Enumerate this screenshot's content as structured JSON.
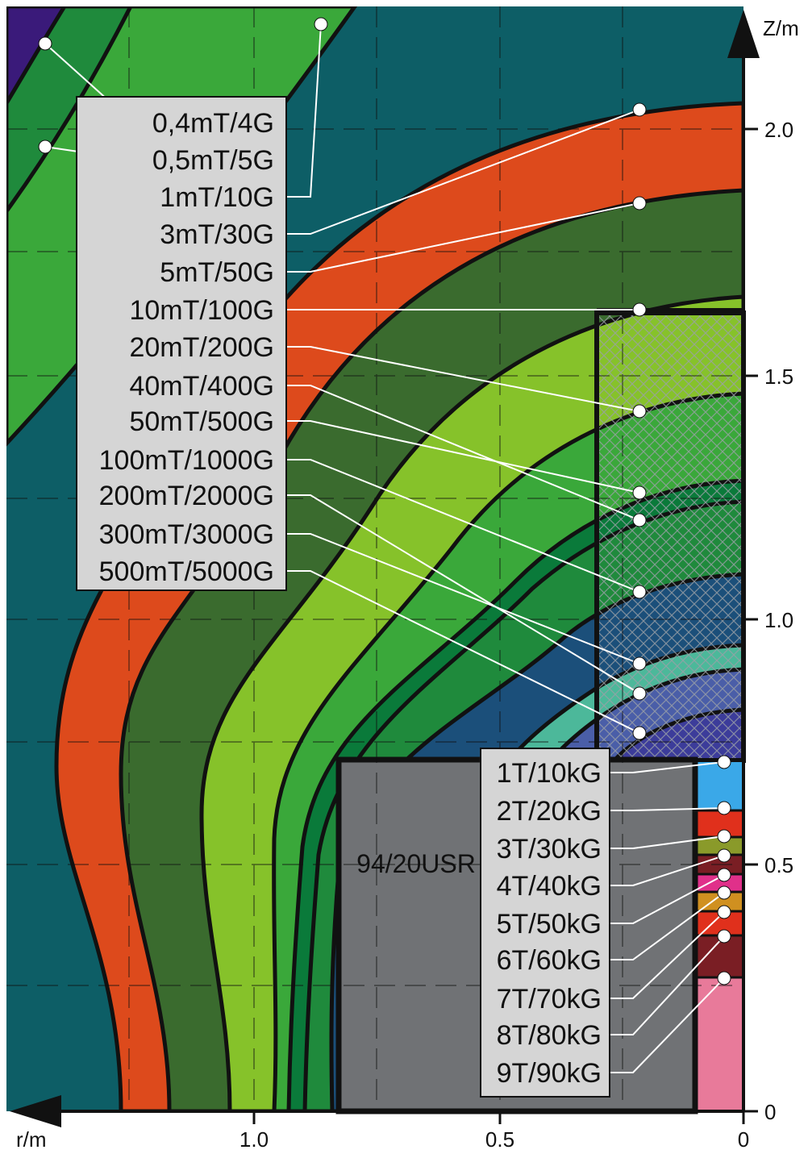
{
  "axes": {
    "r_label": "r/m",
    "z_label": "Z/m",
    "r_ticks": [
      "1.0",
      "0.5",
      "0"
    ],
    "z_ticks": [
      "2.0",
      "1.5",
      "1.0",
      "0.5",
      "0"
    ]
  },
  "magnet_label": "94/20USR",
  "legend_mt": [
    "0,4mT/4G",
    "0,5mT/5G",
    "1mT/10G",
    "3mT/30G",
    "5mT/50G",
    "10mT/100G",
    "20mT/200G",
    "40mT/400G",
    "50mT/500G",
    "100mT/1000G",
    "200mT/2000G",
    "300mT/3000G",
    "500mT/5000G"
  ],
  "legend_t": [
    "1T/10kG",
    "2T/20kG",
    "3T/30kG",
    "4T/40kG",
    "5T/50kG",
    "6T/60kG",
    "7T/70kG",
    "8T/80kG",
    "9T/90kG"
  ],
  "colors": {
    "background": "#0d5e66",
    "band_red": "#dd4a1c",
    "band_darkgreen": "#3a6b2e",
    "band_lime": "#86c22a",
    "band_green": "#3aa83a",
    "band_forest": "#0a7a3a",
    "band_mid": "#1f8a3c",
    "band_navy": "#1b4f7a",
    "band_teal": "#4cb89a",
    "band_blue": "#4a5ea8",
    "band_indigo": "#3c3c9a",
    "corner_purple": "#3a1a7a",
    "magnet_gray": "#707275",
    "legend_bg": "#d5d5d5",
    "core_sky": "#3aa8e8",
    "core_red": "#e0301c",
    "core_olive": "#8a9a2a",
    "core_maroon": "#7a1e24",
    "core_magenta": "#e0308a",
    "core_gold": "#d09020",
    "core_pink": "#e87a9a"
  }
}
